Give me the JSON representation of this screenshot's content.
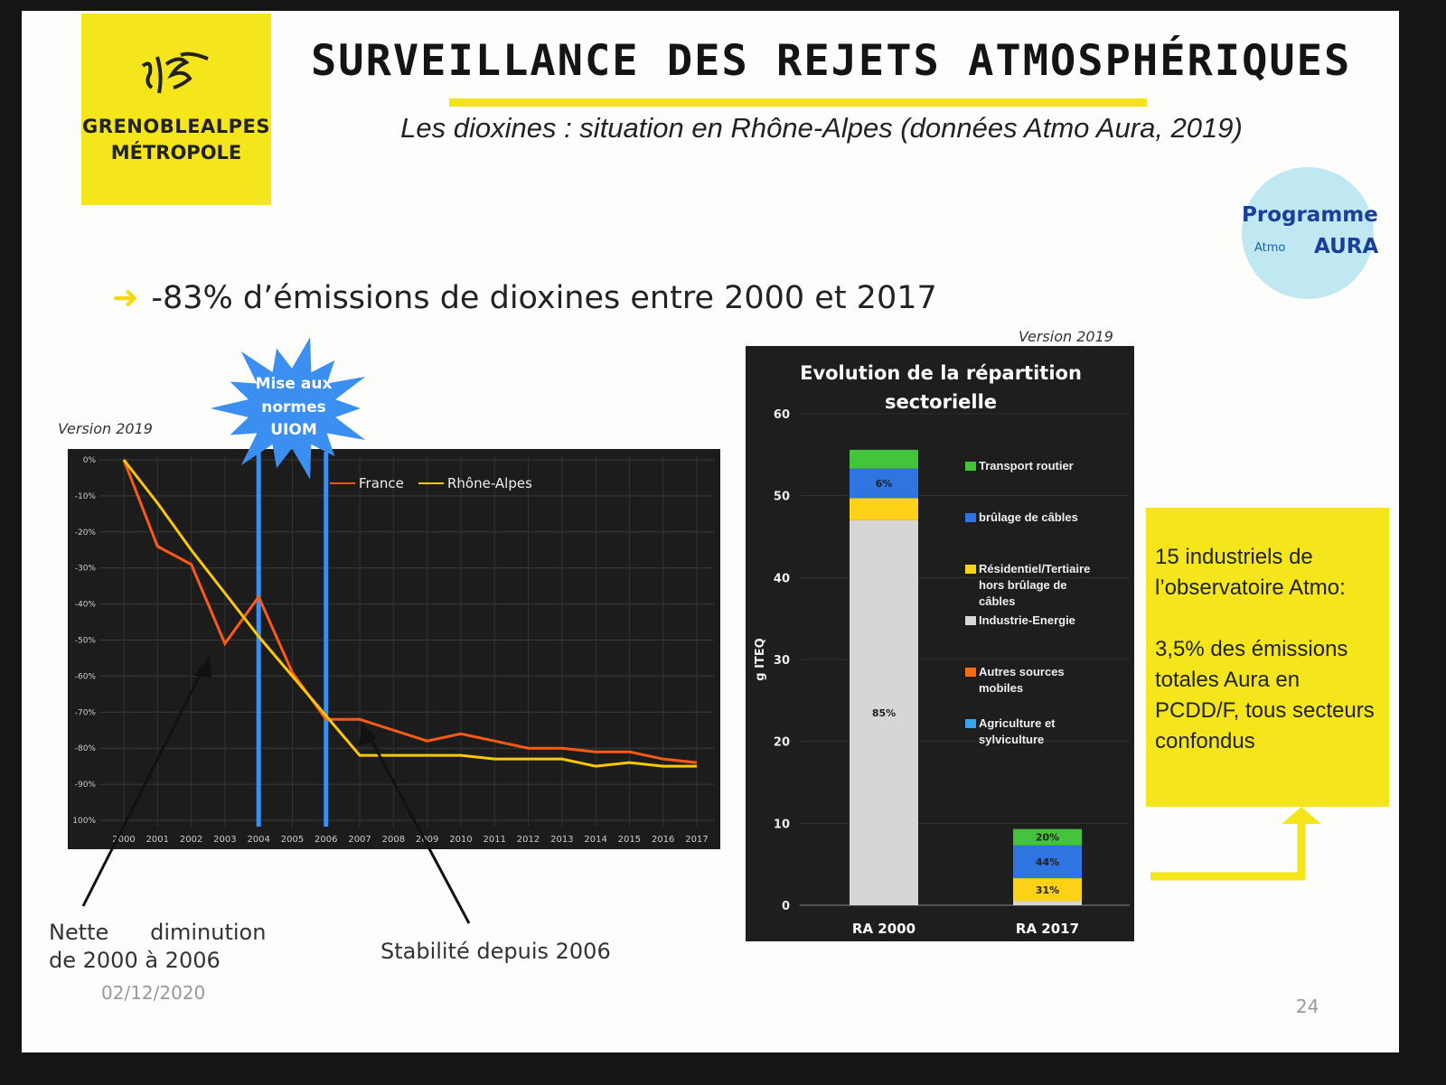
{
  "logo": {
    "line1": "GRENOBLEALPES",
    "line2": "MÉTROPOLE"
  },
  "title": "SURVEILLANCE DES REJETS ATMOSPHÉRIQUES",
  "subtitle": "Les dioxines : situation en Rhône-Alpes (données Atmo Aura, 2019)",
  "badge": {
    "line1": "Programme",
    "atmo": "Atmo",
    "aura": "AURA"
  },
  "bullet": {
    "arrow": "➜",
    "text": "-83% d’émissions de dioxines entre 2000 et 2017"
  },
  "callout": {
    "starburst": "Mise aux normes UIOM"
  },
  "annotations": {
    "left": "Nette      diminution\nde 2000 à 2006",
    "right": "Stabilité depuis 2006"
  },
  "yellow_box": {
    "p1": "15 industriels de l’observatoire Atmo:",
    "p2": "3,5% des émissions totales Aura en PCDD/F, tous secteurs confondus"
  },
  "footer": {
    "date": "02/12/2020",
    "page": "24"
  },
  "colors": {
    "yellow": "#f5e61c",
    "france": "#ff5a14",
    "rhone_alpes": "#ffc800",
    "marker": "#3b8ff0"
  },
  "chart_data": [
    {
      "type": "line",
      "version": "Version 2019",
      "x": [
        2000,
        2001,
        2002,
        2003,
        2004,
        2005,
        2006,
        2007,
        2008,
        2009,
        2010,
        2011,
        2012,
        2013,
        2014,
        2015,
        2016,
        2017
      ],
      "x_ticks": [
        "2000",
        "2001",
        "2002",
        "2003",
        "2004",
        "2005",
        "2006",
        "2007",
        "2008",
        "2009",
        "2010",
        "2011",
        "2012",
        "2013",
        "2014",
        "2015",
        "2016",
        "2017"
      ],
      "y_ticks": [
        "0%",
        "-10%",
        "-20%",
        "-30%",
        "-40%",
        "-50%",
        "-60%",
        "-70%",
        "-80%",
        "-90%",
        "100%"
      ],
      "ylim": [
        -100,
        0
      ],
      "grid": true,
      "legend_position": "top-center",
      "series": [
        {
          "name": "France",
          "values": [
            0,
            -24,
            -29,
            -51,
            -38,
            -59,
            -72,
            -72,
            -75,
            -78,
            -76,
            -78,
            -80,
            -80,
            -81,
            -81,
            -83,
            -84
          ]
        },
        {
          "name": "Rhône-Alpes",
          "values": [
            0,
            -12,
            -25,
            -37,
            -49,
            -60,
            -71,
            -82,
            -82,
            -82,
            -82,
            -83,
            -83,
            -83,
            -85,
            -84,
            -85,
            -85
          ]
        }
      ],
      "markers": [
        2004,
        2006
      ]
    },
    {
      "type": "bar",
      "stacked": true,
      "version": "Version 2019",
      "title": "Evolution de la répartition sectorielle",
      "ylabel": "g ITEQ",
      "ylim": [
        0,
        60
      ],
      "y_ticks": [
        "0",
        "10",
        "20",
        "30",
        "40",
        "50",
        "60"
      ],
      "categories": [
        "RA 2000",
        "RA 2017"
      ],
      "series": [
        {
          "name": "Industrie-Energie",
          "color": "#d6d6d6",
          "values": [
            47,
            0.5
          ],
          "labels": [
            "85%",
            ""
          ]
        },
        {
          "name": "Résidentiel/Tertiaire hors brûlage de câbles",
          "color": "#ffd21a",
          "values": [
            2.7,
            2.8
          ],
          "labels": [
            "",
            "31%"
          ]
        },
        {
          "name": "brûlage de câbles",
          "color": "#2f74e0",
          "values": [
            3.6,
            4.0
          ],
          "labels": [
            "6%",
            "44%"
          ]
        },
        {
          "name": "Transport routier",
          "color": "#43c43a",
          "values": [
            2.3,
            2.0
          ],
          "labels": [
            "",
            "20%"
          ]
        },
        {
          "name": "Autres sources mobiles",
          "color": "#ff6a10",
          "values": [
            0,
            0
          ],
          "labels": [
            "",
            ""
          ]
        },
        {
          "name": "Agriculture et sylviculture",
          "color": "#3aa0f0",
          "values": [
            0,
            0
          ],
          "labels": [
            "",
            ""
          ]
        }
      ],
      "legend_order": [
        3,
        2,
        1,
        0,
        4,
        5
      ],
      "legend_position": "right"
    }
  ]
}
